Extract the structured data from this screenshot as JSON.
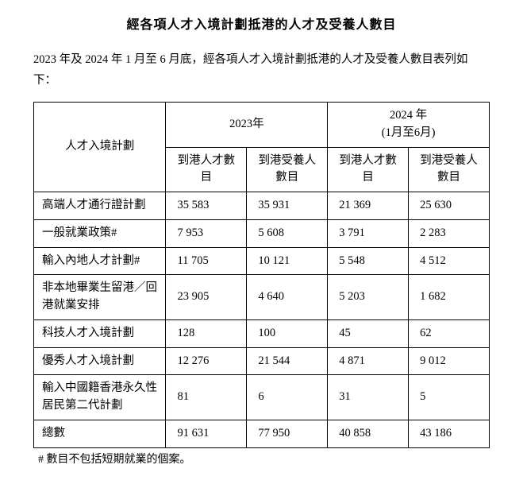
{
  "title": "經各項人才入境計劃抵港的人才及受養人數目",
  "intro": "2023 年及 2024 年 1 月至 6 月底，經各項人才入境計劃抵港的人才及受養人數目表列如下：",
  "table": {
    "scheme_header": "人才入境計劃",
    "period1": "2023年",
    "period2": "2024 年\n(1月至6月)",
    "sub_talent": "到港人才數目",
    "sub_dep": "到港受養人數目",
    "rows": [
      {
        "label": "高端人才通行證計劃",
        "a": "35 583",
        "b": "35 931",
        "c": "21 369",
        "d": "25 630"
      },
      {
        "label": "一般就業政策#",
        "a": "7 953",
        "b": "5 608",
        "c": "3 791",
        "d": "2 283"
      },
      {
        "label": "輸入內地人才計劃#",
        "a": "11 705",
        "b": "10 121",
        "c": "5 548",
        "d": "4 512"
      },
      {
        "label": "非本地畢業生留港／回港就業安排",
        "a": "23 905",
        "b": "4 640",
        "c": "5 203",
        "d": "1 682"
      },
      {
        "label": "科技人才入境計劃",
        "a": "128",
        "b": "100",
        "c": "45",
        "d": "62"
      },
      {
        "label": "優秀人才入境計劃",
        "a": "12 276",
        "b": "21 544",
        "c": "4 871",
        "d": "9 012"
      },
      {
        "label": "輸入中國籍香港永久性居民第二代計劃",
        "a": "81",
        "b": "6",
        "c": "31",
        "d": "5"
      },
      {
        "label": "總數",
        "a": "91 631",
        "b": "77 950",
        "c": "40 858",
        "d": "43 186"
      }
    ]
  },
  "footnote": "#  數目不包括短期就業的個案。"
}
